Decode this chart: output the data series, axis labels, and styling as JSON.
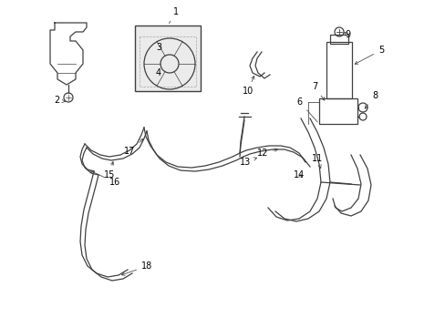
{
  "bg_color": "#ffffff",
  "line_color": "#404040",
  "text_color": "#000000",
  "fig_width": 4.89,
  "fig_height": 3.6,
  "dpi": 100
}
